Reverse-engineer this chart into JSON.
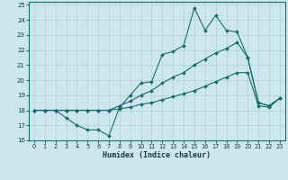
{
  "title": "",
  "xlabel": "Humidex (Indice chaleur)",
  "xlim": [
    -0.5,
    23.5
  ],
  "ylim": [
    16,
    25.2
  ],
  "xticks": [
    0,
    1,
    2,
    3,
    4,
    5,
    6,
    7,
    8,
    9,
    10,
    11,
    12,
    13,
    14,
    15,
    16,
    17,
    18,
    19,
    20,
    21,
    22,
    23
  ],
  "yticks": [
    16,
    17,
    18,
    19,
    20,
    21,
    22,
    23,
    24,
    25
  ],
  "bg_color": "#cce8ee",
  "line_color": "#1a6b6b",
  "grid_color": "#b8d4d8",
  "line1_x": [
    0,
    1,
    2,
    3,
    4,
    5,
    6,
    7,
    8,
    9,
    10,
    11,
    12,
    13,
    14,
    15,
    16,
    17,
    18,
    19,
    20,
    21,
    22,
    23
  ],
  "line1_y": [
    18,
    18,
    18,
    17.5,
    17.0,
    16.7,
    16.7,
    16.3,
    18.2,
    19.0,
    19.8,
    19.9,
    21.7,
    21.9,
    22.3,
    24.8,
    23.3,
    24.3,
    23.3,
    23.2,
    21.5,
    18.5,
    18.3,
    18.8
  ],
  "line2_x": [
    0,
    1,
    2,
    3,
    4,
    5,
    6,
    7,
    8,
    9,
    10,
    11,
    12,
    13,
    14,
    15,
    16,
    17,
    18,
    19,
    20,
    21,
    22,
    23
  ],
  "line2_y": [
    18,
    18,
    18,
    18,
    18,
    18,
    18,
    18,
    18.3,
    18.6,
    19.0,
    19.3,
    19.8,
    20.2,
    20.5,
    21.0,
    21.4,
    21.8,
    22.1,
    22.5,
    21.5,
    18.5,
    18.3,
    18.8
  ],
  "line3_x": [
    0,
    1,
    2,
    3,
    4,
    5,
    6,
    7,
    8,
    9,
    10,
    11,
    12,
    13,
    14,
    15,
    16,
    17,
    18,
    19,
    20,
    21,
    22,
    23
  ],
  "line3_y": [
    18,
    18,
    18,
    18,
    18,
    18,
    18,
    18,
    18.1,
    18.2,
    18.4,
    18.5,
    18.7,
    18.9,
    19.1,
    19.3,
    19.6,
    19.9,
    20.2,
    20.5,
    20.5,
    18.3,
    18.2,
    18.8
  ]
}
